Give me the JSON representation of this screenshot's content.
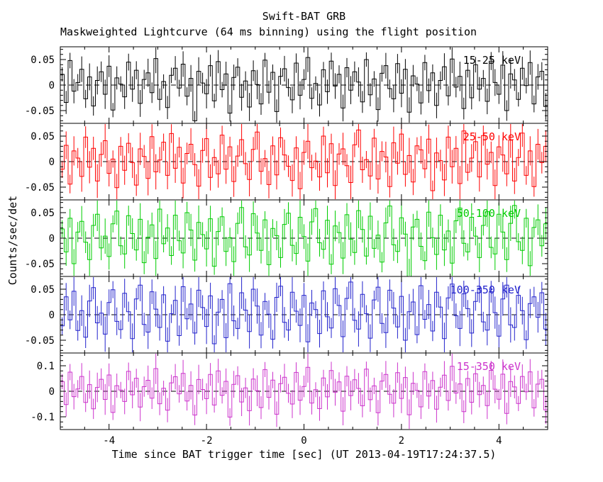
{
  "title": "Swift-BAT GRB",
  "subtitle": "Maskweighted Lightcurve (64 ms binning) using the flight position",
  "xlabel": "Time since BAT trigger time [sec] (UT 2013-04-19T17:24:37.5)",
  "ylabel": "Counts/sec/det",
  "chart_data": {
    "type": "line",
    "style": "step-histogram-with-errorbars",
    "binning": "64 ms",
    "x_range": [
      -5,
      5
    ],
    "x_major_ticks": [
      -4,
      -2,
      0,
      2,
      4
    ],
    "x_minor_step": 0.5,
    "grid": false,
    "zero_line": "dashed",
    "panels": [
      {
        "label": "15-25 keV",
        "color": "#000000",
        "ylim": [
          -0.075,
          0.075
        ],
        "yticks": [
          0.05,
          0,
          -0.05
        ],
        "yminor_step": 0.01,
        "sigma": 0.02,
        "values": [
          0.021,
          -0.034,
          0.048,
          -0.012,
          0.005,
          0.031,
          -0.027,
          0.016,
          -0.041,
          0.009,
          0.026,
          -0.018,
          0.037,
          -0.049,
          0.014,
          0.002,
          -0.023,
          0.045,
          -0.008,
          0.029,
          -0.036,
          0.011,
          0.024,
          -0.015,
          0.052,
          -0.028,
          0.007,
          -0.044,
          0.019,
          0.033,
          -0.006,
          0.041,
          -0.022,
          0.013,
          -0.07,
          0.027,
          0.004,
          -0.017,
          0.038,
          -0.031,
          0.046,
          -0.009,
          0.022,
          -0.055,
          0.015,
          0.035,
          -0.024,
          0.008,
          -0.043,
          0.028,
          0.001,
          -0.037,
          0.049,
          -0.014,
          0.025,
          -0.052,
          0.017,
          0.032,
          -0.005,
          -0.029,
          0.043,
          -0.02,
          0.011,
          0.054,
          -0.026,
          0.003,
          -0.039,
          0.03,
          -0.013,
          0.047,
          -0.002,
          0.021,
          -0.045,
          0.034,
          -0.01,
          0.026,
          0.006,
          -0.033,
          0.05,
          -0.019,
          0.012,
          -0.048,
          0.023,
          0.038,
          -0.007,
          -0.027,
          0.042,
          -0.016,
          0.031,
          -0.053,
          0.018,
          0.002,
          -0.035,
          0.044,
          -0.011,
          0.024,
          -0.04,
          0.009,
          0.036,
          -0.021,
          0.051,
          -0.004,
          0.017,
          -0.046,
          0.029,
          -0.025,
          0.04,
          -0.008,
          0.013,
          -0.032,
          0.047,
          0.005,
          -0.018,
          0.039,
          -0.05,
          0.022,
          0.01,
          -0.028,
          0.033,
          -0.001,
          0.044,
          -0.037,
          0.016,
          0.027,
          -0.042
        ]
      },
      {
        "label": "25-50 keV",
        "color": "#ff0000",
        "ylim": [
          -0.075,
          0.075
        ],
        "yticks": [
          0.05,
          0,
          -0.05
        ],
        "yminor_step": 0.01,
        "sigma": 0.024,
        "values": [
          -0.015,
          0.032,
          -0.044,
          0.021,
          0.007,
          -0.029,
          0.048,
          -0.011,
          0.026,
          -0.038,
          0.014,
          0.041,
          -0.023,
          0.005,
          -0.051,
          0.03,
          -0.017,
          0.036,
          -0.002,
          -0.046,
          0.025,
          0.01,
          -0.033,
          0.049,
          -0.02,
          0.003,
          0.038,
          -0.027,
          0.055,
          -0.013,
          0.028,
          -0.042,
          0.016,
          0.034,
          -0.006,
          -0.048,
          0.022,
          0.045,
          -0.031,
          0.008,
          -0.024,
          0.052,
          -0.015,
          0.029,
          -0.039,
          0.011,
          0.043,
          -0.004,
          -0.035,
          0.024,
          0.058,
          -0.019,
          0.006,
          -0.045,
          0.031,
          -0.026,
          0.047,
          0.013,
          -0.009,
          -0.037,
          0.027,
          -0.053,
          0.018,
          0.04,
          -0.012,
          0.001,
          -0.03,
          0.05,
          -0.022,
          0.035,
          -0.047,
          0.015,
          0.025,
          -0.008,
          -0.041,
          0.033,
          0.062,
          -0.016,
          0.004,
          -0.028,
          0.046,
          -0.034,
          0.02,
          0.009,
          -0.049,
          0.037,
          -0.003,
          0.054,
          -0.025,
          0.012,
          -0.04,
          0.031,
          0.023,
          -0.014,
          0.044,
          -0.057,
          0.017,
          0.002,
          -0.036,
          0.048,
          -0.01,
          0.026,
          -0.043,
          0.06,
          -0.021,
          0.007,
          0.039,
          -0.03,
          0.051,
          -0.005,
          0.018,
          -0.047,
          0.029,
          0.013,
          -0.024,
          0.042,
          -0.038,
          0.008,
          0.056,
          -0.027,
          0.021,
          -0.049,
          0.034,
          -0.002,
          0.03
        ]
      },
      {
        "label": "50-100 keV",
        "color": "#00cc00",
        "ylim": [
          -0.075,
          0.075
        ],
        "yticks": [
          0.05,
          0,
          -0.05
        ],
        "yminor_step": 0.01,
        "sigma": 0.024,
        "values": [
          0.018,
          -0.027,
          0.039,
          -0.05,
          0.012,
          0.033,
          -0.008,
          -0.042,
          0.025,
          0.047,
          -0.019,
          0.004,
          -0.036,
          0.028,
          0.053,
          -0.015,
          -0.031,
          0.044,
          0.009,
          -0.023,
          0.037,
          -0.048,
          0.002,
          0.026,
          -0.04,
          0.057,
          -0.011,
          0.02,
          -0.034,
          0.045,
          -0.005,
          -0.029,
          0.05,
          0.016,
          -0.043,
          0.031,
          0.007,
          -0.021,
          0.038,
          -0.055,
          0.013,
          0.042,
          -0.026,
          0.001,
          -0.046,
          0.029,
          0.06,
          -0.017,
          -0.033,
          0.048,
          0.01,
          -0.024,
          0.036,
          -0.052,
          0.019,
          0.005,
          -0.038,
          0.027,
          0.049,
          -0.014,
          -0.03,
          0.041,
          0.003,
          -0.045,
          0.032,
          0.058,
          -0.009,
          -0.022,
          0.035,
          -0.051,
          0.024,
          0.011,
          -0.039,
          0.046,
          -0.002,
          -0.028,
          0.054,
          0.017,
          -0.035,
          0.043,
          -0.02,
          0.006,
          -0.047,
          0.03,
          0.063,
          -0.013,
          -0.026,
          0.04,
          0.008,
          -0.075,
          0.022,
          0.037,
          -0.016,
          -0.044,
          0.051,
          0.001,
          -0.032,
          0.045,
          -0.023,
          0.014,
          -0.049,
          0.034,
          0.059,
          -0.01,
          -0.027,
          0.041,
          0.004,
          -0.038,
          0.025,
          0.052,
          -0.018,
          -0.031,
          0.047,
          0.012,
          -0.042,
          0.029,
          0.064,
          -0.007,
          -0.024,
          0.039,
          -0.054,
          0.021,
          0.036,
          -0.015,
          0.028
        ]
      },
      {
        "label": "100-350 keV",
        "color": "#2222cc",
        "ylim": [
          -0.075,
          0.075
        ],
        "yticks": [
          0.05,
          0,
          -0.05
        ],
        "yminor_step": 0.01,
        "sigma": 0.024,
        "values": [
          -0.022,
          0.035,
          -0.01,
          0.046,
          -0.031,
          0.008,
          -0.044,
          0.027,
          0.053,
          -0.016,
          0.003,
          -0.038,
          0.024,
          0.049,
          -0.013,
          -0.029,
          0.042,
          0.006,
          -0.047,
          0.031,
          0.058,
          -0.019,
          -0.034,
          0.045,
          0.011,
          -0.025,
          0.039,
          -0.052,
          0.002,
          0.028,
          -0.041,
          0.055,
          -0.008,
          0.021,
          -0.036,
          0.048,
          0.014,
          -0.023,
          0.037,
          -0.057,
          0.005,
          0.03,
          -0.045,
          0.061,
          -0.012,
          -0.027,
          0.043,
          0.009,
          -0.033,
          0.05,
          0.017,
          -0.04,
          0.026,
          0.001,
          -0.048,
          0.034,
          0.056,
          -0.015,
          -0.03,
          0.044,
          0.007,
          -0.021,
          0.038,
          -0.053,
          0.023,
          0.01,
          -0.037,
          0.047,
          -0.004,
          -0.026,
          0.051,
          0.018,
          -0.043,
          0.032,
          0.064,
          -0.011,
          -0.028,
          0.04,
          0.002,
          -0.046,
          0.029,
          0.054,
          -0.017,
          -0.035,
          0.048,
          0.013,
          -0.024,
          0.036,
          -0.05,
          0.006,
          0.025,
          -0.039,
          0.057,
          -0.009,
          0.02,
          -0.032,
          0.044,
          0.015,
          -0.047,
          0.033,
          0.06,
          -0.002,
          -0.027,
          0.041,
          0.012,
          -0.036,
          0.026,
          0.052,
          -0.014,
          -0.03,
          0.045,
          0.004,
          -0.042,
          0.031,
          0.058,
          -0.02,
          -0.025,
          0.038,
          0.008,
          -0.049,
          0.022,
          0.035,
          -0.005,
          0.043,
          -0.028
        ]
      },
      {
        "label": "15-350 keV",
        "color": "#cc33cc",
        "ylim": [
          -0.15,
          0.15
        ],
        "yticks": [
          0.1,
          0,
          -0.1
        ],
        "yminor_step": 0.02,
        "sigma": 0.042,
        "values": [
          0.038,
          -0.052,
          0.075,
          -0.021,
          0.009,
          0.058,
          -0.044,
          0.026,
          -0.069,
          0.015,
          0.047,
          -0.032,
          0.064,
          -0.083,
          0.022,
          0.005,
          -0.04,
          0.078,
          -0.014,
          0.051,
          -0.062,
          0.018,
          0.043,
          -0.027,
          0.089,
          -0.049,
          0.012,
          -0.074,
          0.033,
          0.057,
          -0.01,
          0.07,
          -0.038,
          0.023,
          -0.093,
          0.046,
          0.007,
          -0.029,
          0.066,
          -0.054,
          0.08,
          -0.016,
          0.039,
          -0.101,
          0.027,
          0.061,
          -0.042,
          0.013,
          -0.076,
          0.048,
          0.002,
          -0.064,
          0.085,
          -0.024,
          0.044,
          -0.09,
          0.03,
          0.055,
          -0.008,
          -0.05,
          0.074,
          -0.035,
          0.019,
          0.094,
          -0.046,
          0.006,
          -0.068,
          0.052,
          -0.022,
          0.081,
          -0.004,
          0.037,
          -0.078,
          0.059,
          -0.017,
          0.045,
          0.011,
          -0.057,
          0.087,
          -0.033,
          0.021,
          -0.084,
          0.04,
          0.066,
          -0.012,
          -0.047,
          0.073,
          -0.028,
          0.054,
          -0.092,
          0.031,
          0.003,
          -0.061,
          0.077,
          -0.019,
          0.042,
          -0.07,
          0.016,
          0.063,
          -0.036,
          0.098,
          -0.007,
          0.029,
          -0.08,
          0.05,
          -0.043,
          0.069,
          -0.013,
          0.023,
          -0.056,
          0.082,
          0.008,
          -0.031,
          0.067,
          -0.087,
          0.038,
          0.017,
          -0.048,
          0.058,
          -0.002,
          0.076,
          -0.065,
          0.028,
          0.047,
          -0.073
        ]
      }
    ]
  }
}
